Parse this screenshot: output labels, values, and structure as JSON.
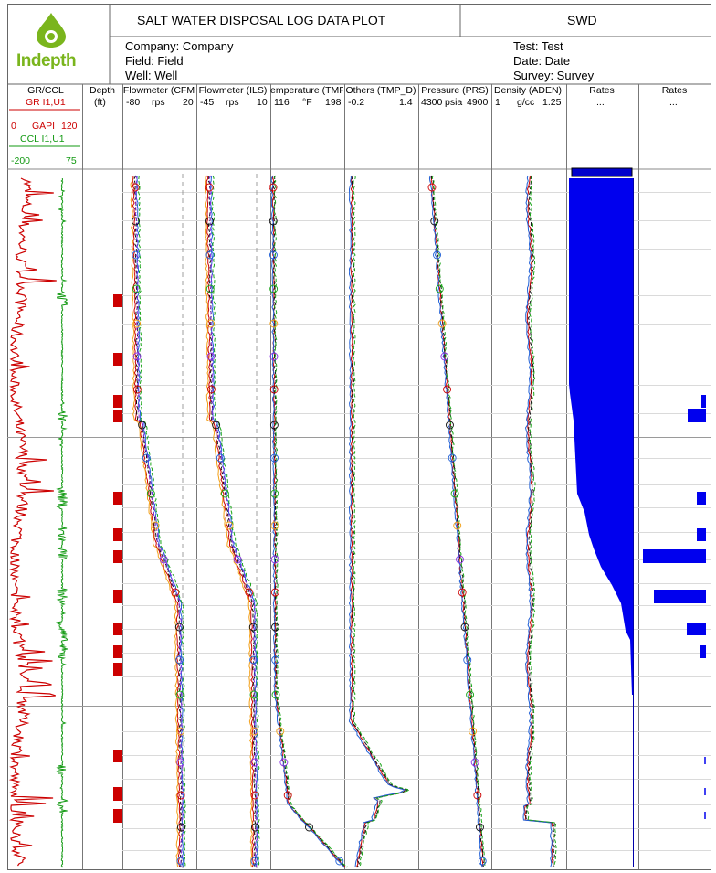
{
  "header": {
    "logo_text": "Indepth",
    "title": "SALT WATER DISPOSAL LOG DATA PLOT",
    "code": "SWD",
    "company": "Company: Company",
    "field": "Field: Field",
    "well": "Well: Well",
    "test": "Test: Test",
    "date": "Date: Date",
    "survey": "Survey: Survey"
  },
  "colors": {
    "gr": "#cc0000",
    "ccl": "#119911",
    "rates_fill": "#0000ee",
    "perf": "#cc0000",
    "pass_colors": [
      "#cc0000",
      "#111111",
      "#1f5fd6",
      "#19a519",
      "#f2a018",
      "#8a2be2"
    ]
  },
  "chart_data": [
    {
      "type": "line",
      "track": "GR/CCL",
      "title": "GR/CCL",
      "series": [
        {
          "name": "GR I1,U1",
          "unit": "GAPI",
          "range": [
            0,
            120
          ],
          "depth_fraction": [
            0.0,
            0.05,
            0.1,
            0.15,
            0.2,
            0.25,
            0.3,
            0.35,
            0.4,
            0.45,
            0.5,
            0.55,
            0.6,
            0.65,
            0.7,
            0.75,
            0.8,
            0.85,
            0.9,
            0.95,
            1.0
          ],
          "values": [
            40,
            25,
            20,
            30,
            18,
            10,
            12,
            15,
            8,
            12,
            9,
            10,
            14,
            16,
            20,
            25,
            30,
            28,
            20,
            18,
            15
          ]
        },
        {
          "name": "CCL I1,U1",
          "range": [
            -200,
            75
          ]
        }
      ]
    },
    {
      "type": "table",
      "track": "Depth",
      "title": "Depth",
      "unit": "(ft)"
    },
    {
      "type": "line",
      "track": "Flowmeter (CFM)",
      "title": "Flowmeter (CFM",
      "unit": "rps",
      "range": [
        -80,
        20
      ]
    },
    {
      "type": "line",
      "track": "Flowmeter (ILS)",
      "title": "Flowmeter (ILS)",
      "unit": "rps",
      "range": [
        -45,
        10
      ]
    },
    {
      "type": "line",
      "track": "Temperature (TMP)",
      "title": "emperature (TMP",
      "unit": "°F",
      "range": [
        116,
        198
      ]
    },
    {
      "type": "line",
      "track": "Others (TMP_D)",
      "title": "Others (TMP_D)",
      "range": [
        -0.2,
        1.4
      ]
    },
    {
      "type": "line",
      "track": "Pressure (PRS)",
      "title": "Pressure (PRS)",
      "unit": "psia",
      "range": [
        4300,
        4900
      ]
    },
    {
      "type": "line",
      "track": "Density (ADEN)",
      "title": "Density (ADEN)",
      "unit": "g/cc",
      "range": [
        1,
        1.25
      ]
    },
    {
      "type": "area",
      "track": "Rates",
      "title": "Rates",
      "scale_text": "..."
    },
    {
      "type": "bar",
      "track": "Rates 2",
      "title": "Rates",
      "scale_text": "..."
    }
  ]
}
